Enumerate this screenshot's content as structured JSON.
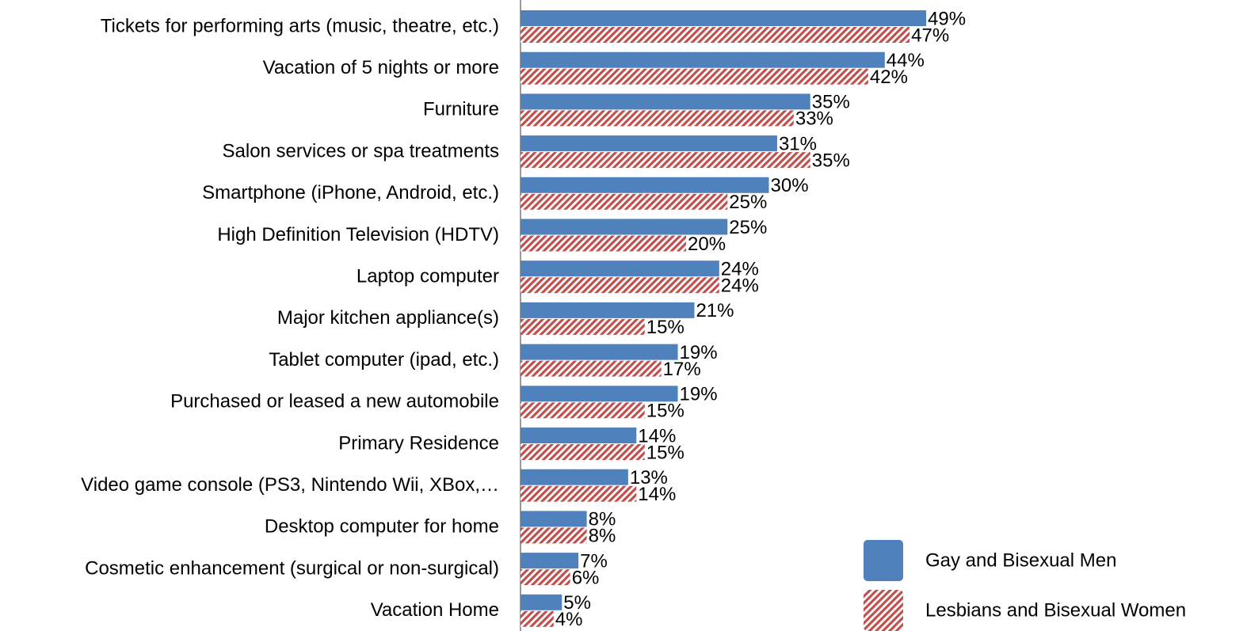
{
  "chart_data": {
    "type": "bar",
    "orientation": "horizontal",
    "categories": [
      "Tickets for performing arts (music, theatre, etc.)",
      "Vacation of 5 nights or more",
      "Furniture",
      "Salon services or spa treatments",
      "Smartphone (iPhone, Android, etc.)",
      "High Definition Television (HDTV)",
      "Laptop computer",
      "Major kitchen appliance(s)",
      "Tablet computer (ipad, etc.)",
      "Purchased or leased a new automobile",
      "Primary Residence",
      "Video game console (PS3, Nintendo Wii, XBox,…",
      "Desktop computer for home",
      "Cosmetic enhancement (surgical or non-surgical)",
      "Vacation Home"
    ],
    "series": [
      {
        "name": "Gay and Bisexual Men",
        "color": "#4f81bd",
        "values": [
          49,
          44,
          35,
          31,
          30,
          25,
          24,
          21,
          19,
          19,
          14,
          13,
          8,
          7,
          5
        ],
        "value_labels": [
          "49%",
          "44%",
          "35%",
          "31%",
          "30%",
          "25%",
          "24%",
          "21%",
          "19%",
          "19%",
          "14%",
          "13%",
          "8%",
          "7%",
          "5%"
        ]
      },
      {
        "name": "Lesbians and Bisexual Women",
        "color": "#c0504d",
        "hatch": true,
        "values": [
          47,
          42,
          33,
          35,
          25,
          20,
          24,
          15,
          17,
          15,
          15,
          14,
          8,
          6,
          4
        ],
        "value_labels": [
          "47%",
          "42%",
          "33%",
          "35%",
          "25%",
          "20%",
          "24%",
          "15%",
          "17%",
          "15%",
          "15%",
          "14%",
          "8%",
          "6%",
          "4%"
        ]
      }
    ],
    "legend": "bottom-right"
  }
}
